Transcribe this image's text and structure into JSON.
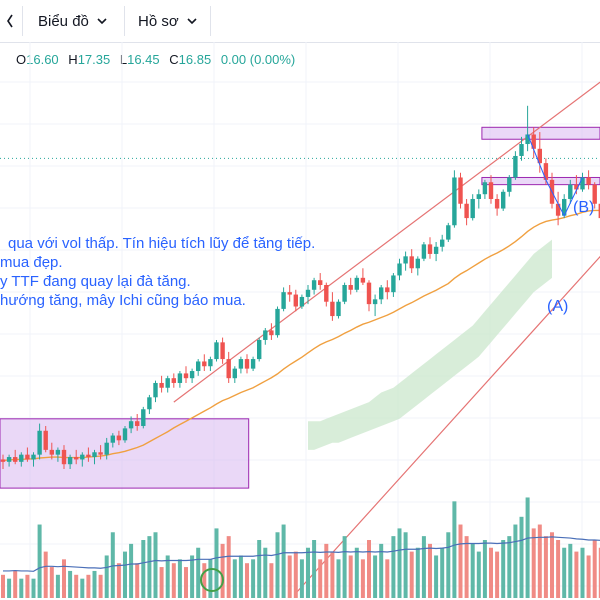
{
  "toolbar": {
    "chart_menu_label": "Biểu đồ",
    "profile_menu_label": "Hồ sơ"
  },
  "ohlc": {
    "o_key": "O",
    "o_val": "16.60",
    "h_key": "H",
    "h_val": "17.35",
    "l_key": "L",
    "l_val": "16.45",
    "c_key": "C",
    "c_val": "16.85",
    "change": "0.00 (0.00%)"
  },
  "notes": [
    "qua với vol thấp. Tín hiệu tích lũy để tăng tiếp.",
    "mua đẹp.",
    "y TTF đang quay lại đà tăng.",
    "hướng tăng, mây Ichi cũng báo mua."
  ],
  "wave_labels": {
    "b": "(B)",
    "a": "(A)"
  },
  "colors": {
    "up": "#26a69a",
    "down": "#ef5350",
    "vol_up": "#5fb8a8",
    "vol_down": "#f08b85",
    "ma": "#f0a040",
    "vol_ma": "#4a6fb8",
    "channel": "#e57373",
    "zone_fill": "#d9b8f0",
    "zone_border": "#9c27b0",
    "cloud": "#c8e6c9",
    "note_text": "#2962ff",
    "marker": "#43a047"
  },
  "chart_data": {
    "type": "candlestick",
    "candles": [
      [
        16.6,
        16.7,
        16.4,
        16.55
      ],
      [
        16.55,
        16.7,
        16.45,
        16.65
      ],
      [
        16.65,
        16.8,
        16.5,
        16.55
      ],
      [
        16.55,
        16.75,
        16.45,
        16.7
      ],
      [
        16.7,
        16.85,
        16.55,
        16.6
      ],
      [
        16.6,
        16.75,
        16.45,
        16.7
      ],
      [
        16.7,
        17.35,
        16.6,
        17.2
      ],
      [
        17.2,
        17.3,
        16.75,
        16.8
      ],
      [
        16.8,
        16.95,
        16.6,
        16.7
      ],
      [
        16.7,
        16.85,
        16.55,
        16.8
      ],
      [
        16.8,
        16.9,
        16.4,
        16.5
      ],
      [
        16.5,
        16.7,
        16.4,
        16.65
      ],
      [
        16.65,
        16.8,
        16.5,
        16.6
      ],
      [
        16.6,
        16.75,
        16.45,
        16.7
      ],
      [
        16.7,
        16.85,
        16.55,
        16.65
      ],
      [
        16.65,
        16.8,
        16.5,
        16.75
      ],
      [
        16.75,
        16.9,
        16.6,
        16.7
      ],
      [
        16.7,
        17.05,
        16.6,
        16.95
      ],
      [
        16.95,
        17.15,
        16.85,
        17.1
      ],
      [
        17.1,
        17.2,
        16.9,
        17.0
      ],
      [
        17.0,
        17.3,
        16.95,
        17.25
      ],
      [
        17.25,
        17.5,
        17.15,
        17.4
      ],
      [
        17.4,
        17.55,
        17.2,
        17.3
      ],
      [
        17.3,
        17.7,
        17.25,
        17.65
      ],
      [
        17.65,
        17.95,
        17.55,
        17.9
      ],
      [
        17.9,
        18.25,
        17.8,
        18.2
      ],
      [
        18.2,
        18.35,
        18.0,
        18.1
      ],
      [
        18.1,
        18.35,
        18.0,
        18.3
      ],
      [
        18.3,
        18.4,
        18.1,
        18.2
      ],
      [
        18.2,
        18.45,
        18.1,
        18.4
      ],
      [
        18.4,
        18.55,
        18.2,
        18.3
      ],
      [
        18.3,
        18.5,
        18.2,
        18.45
      ],
      [
        18.45,
        18.7,
        18.35,
        18.65
      ],
      [
        18.65,
        18.8,
        18.45,
        18.55
      ],
      [
        18.55,
        18.75,
        18.45,
        18.7
      ],
      [
        18.7,
        19.1,
        18.65,
        19.05
      ],
      [
        19.05,
        19.15,
        18.6,
        18.7
      ],
      [
        18.7,
        18.85,
        18.2,
        18.3
      ],
      [
        18.3,
        18.55,
        18.2,
        18.5
      ],
      [
        18.5,
        18.75,
        18.4,
        18.7
      ],
      [
        18.7,
        18.8,
        18.4,
        18.5
      ],
      [
        18.5,
        18.75,
        18.45,
        18.7
      ],
      [
        18.7,
        19.15,
        18.65,
        19.1
      ],
      [
        19.1,
        19.35,
        19.0,
        19.3
      ],
      [
        19.3,
        19.45,
        19.1,
        19.2
      ],
      [
        19.2,
        19.8,
        19.15,
        19.75
      ],
      [
        19.75,
        20.2,
        19.7,
        20.1
      ],
      [
        20.1,
        20.25,
        19.9,
        20.05
      ],
      [
        20.05,
        20.15,
        19.7,
        19.8
      ],
      [
        19.8,
        20.05,
        19.75,
        20.0
      ],
      [
        20.0,
        20.25,
        19.85,
        20.15
      ],
      [
        20.15,
        20.4,
        20.05,
        20.35
      ],
      [
        20.35,
        20.5,
        20.15,
        20.25
      ],
      [
        20.25,
        20.3,
        19.8,
        19.9
      ],
      [
        19.9,
        20.1,
        19.5,
        19.6
      ],
      [
        19.6,
        19.95,
        19.55,
        19.9
      ],
      [
        19.9,
        20.3,
        19.85,
        20.25
      ],
      [
        20.25,
        20.4,
        20.05,
        20.15
      ],
      [
        20.15,
        20.45,
        20.1,
        20.4
      ],
      [
        20.4,
        20.6,
        20.25,
        20.3
      ],
      [
        20.3,
        20.35,
        19.7,
        19.85
      ],
      [
        19.85,
        20.05,
        19.6,
        19.95
      ],
      [
        19.95,
        20.25,
        19.85,
        20.2
      ],
      [
        20.2,
        20.35,
        19.95,
        20.1
      ],
      [
        20.1,
        20.5,
        20.0,
        20.45
      ],
      [
        20.45,
        20.8,
        20.35,
        20.7
      ],
      [
        20.7,
        20.95,
        20.55,
        20.85
      ],
      [
        20.85,
        21.0,
        20.5,
        20.6
      ],
      [
        20.6,
        20.85,
        20.45,
        20.8
      ],
      [
        20.8,
        21.15,
        20.75,
        21.1
      ],
      [
        21.1,
        21.25,
        20.8,
        20.9
      ],
      [
        20.9,
        21.15,
        20.75,
        21.05
      ],
      [
        21.05,
        21.3,
        20.95,
        21.2
      ],
      [
        21.2,
        21.55,
        21.15,
        21.5
      ],
      [
        21.5,
        22.65,
        21.45,
        22.5
      ],
      [
        22.5,
        22.6,
        21.85,
        21.95
      ],
      [
        21.95,
        22.05,
        21.5,
        21.65
      ],
      [
        21.65,
        22.15,
        21.6,
        22.05
      ],
      [
        22.05,
        22.25,
        21.85,
        22.15
      ],
      [
        22.15,
        22.45,
        22.05,
        22.4
      ],
      [
        22.4,
        22.55,
        21.95,
        22.05
      ],
      [
        22.05,
        22.15,
        21.7,
        21.85
      ],
      [
        21.85,
        22.25,
        21.8,
        22.2
      ],
      [
        22.2,
        22.55,
        22.1,
        22.5
      ],
      [
        22.5,
        23.05,
        22.45,
        22.95
      ],
      [
        22.95,
        23.35,
        22.85,
        23.2
      ],
      [
        23.2,
        24.0,
        23.05,
        23.4
      ],
      [
        23.4,
        23.55,
        22.9,
        23.1
      ],
      [
        23.1,
        23.45,
        22.6,
        22.8
      ],
      [
        22.8,
        22.9,
        22.35,
        22.45
      ],
      [
        22.45,
        22.6,
        21.85,
        21.95
      ],
      [
        21.95,
        22.2,
        21.5,
        21.7
      ],
      [
        21.7,
        22.15,
        21.65,
        22.05
      ],
      [
        22.05,
        22.45,
        21.95,
        22.35
      ],
      [
        22.35,
        22.55,
        22.15,
        22.25
      ],
      [
        22.25,
        22.6,
        22.2,
        22.5
      ],
      [
        22.5,
        22.65,
        22.25,
        22.35
      ],
      [
        22.35,
        22.4,
        21.85,
        21.95
      ],
      [
        21.95,
        22.1,
        21.55,
        21.65
      ]
    ],
    "ma": [
      16.58,
      16.59,
      16.6,
      16.6,
      16.61,
      16.61,
      16.63,
      16.64,
      16.65,
      16.65,
      16.64,
      16.64,
      16.64,
      16.64,
      16.65,
      16.66,
      16.67,
      16.69,
      16.72,
      16.74,
      16.77,
      16.81,
      16.85,
      16.9,
      16.97,
      17.04,
      17.11,
      17.18,
      17.26,
      17.33,
      17.4,
      17.47,
      17.54,
      17.61,
      17.68,
      17.76,
      17.83,
      17.88,
      17.94,
      18.0,
      18.05,
      18.1,
      18.17,
      18.24,
      18.31,
      18.39,
      18.49,
      18.58,
      18.66,
      18.74,
      18.83,
      18.92,
      19.0,
      19.06,
      19.11,
      19.17,
      19.24,
      19.3,
      19.37,
      19.43,
      19.47,
      19.52,
      19.57,
      19.62,
      19.68,
      19.75,
      19.82,
      19.88,
      19.95,
      20.02,
      20.08,
      20.14,
      20.21,
      20.28,
      20.39,
      20.48,
      20.55,
      20.63,
      20.71,
      20.79,
      20.86,
      20.92,
      20.99,
      21.07,
      21.16,
      21.26,
      21.37,
      21.46,
      21.53,
      21.58,
      21.61,
      21.63,
      21.66,
      21.7,
      21.73,
      21.77,
      21.8,
      21.81,
      21.81
    ],
    "volume": [
      0.6,
      0.5,
      0.7,
      0.5,
      0.6,
      0.5,
      1.9,
      1.2,
      0.8,
      0.6,
      1.0,
      0.7,
      0.6,
      0.5,
      0.6,
      0.7,
      0.6,
      1.1,
      1.7,
      0.9,
      1.2,
      1.4,
      0.9,
      1.5,
      1.6,
      1.7,
      0.8,
      1.1,
      0.9,
      1.0,
      0.8,
      1.1,
      1.3,
      0.9,
      1.0,
      1.8,
      1.4,
      1.6,
      1.0,
      1.1,
      0.9,
      1.0,
      1.5,
      1.3,
      0.9,
      1.7,
      1.9,
      1.1,
      1.2,
      1.0,
      1.3,
      1.5,
      1.0,
      1.4,
      1.2,
      1.0,
      1.6,
      1.1,
      1.3,
      1.0,
      1.5,
      1.1,
      1.4,
      1.0,
      1.6,
      1.8,
      1.7,
      1.2,
      1.3,
      1.6,
      1.4,
      1.1,
      1.3,
      1.7,
      2.5,
      1.9,
      1.6,
      1.4,
      1.2,
      1.5,
      1.3,
      1.2,
      1.5,
      1.6,
      1.9,
      2.1,
      2.6,
      1.8,
      1.9,
      1.6,
      1.7,
      1.5,
      1.3,
      1.4,
      1.2,
      1.3,
      1.1,
      1.5,
      1.3
    ],
    "vol_ma": [
      0.7,
      0.7,
      0.71,
      0.7,
      0.7,
      0.69,
      0.78,
      0.82,
      0.82,
      0.81,
      0.82,
      0.81,
      0.8,
      0.79,
      0.78,
      0.78,
      0.77,
      0.79,
      0.83,
      0.84,
      0.85,
      0.88,
      0.88,
      0.91,
      0.94,
      0.97,
      0.96,
      0.97,
      0.97,
      0.97,
      0.97,
      0.98,
      1.0,
      1.0,
      1.0,
      1.04,
      1.06,
      1.08,
      1.08,
      1.08,
      1.08,
      1.08,
      1.1,
      1.11,
      1.1,
      1.13,
      1.17,
      1.17,
      1.17,
      1.17,
      1.18,
      1.19,
      1.18,
      1.19,
      1.19,
      1.18,
      1.2,
      1.19,
      1.2,
      1.19,
      1.2,
      1.19,
      1.2,
      1.19,
      1.21,
      1.24,
      1.26,
      1.26,
      1.26,
      1.28,
      1.29,
      1.28,
      1.29,
      1.31,
      1.37,
      1.4,
      1.41,
      1.41,
      1.41,
      1.42,
      1.42,
      1.41,
      1.42,
      1.43,
      1.46,
      1.49,
      1.55,
      1.56,
      1.57,
      1.57,
      1.58,
      1.57,
      1.56,
      1.55,
      1.53,
      1.52,
      1.5,
      1.5,
      1.49
    ],
    "cloud_top": [
      17.4,
      17.4,
      17.4,
      17.45,
      17.5,
      17.55,
      17.6,
      17.65,
      17.7,
      17.75,
      17.8,
      17.9,
      18.0,
      18.05,
      18.1,
      18.2,
      18.3,
      18.4,
      18.5,
      18.6,
      18.7,
      18.8,
      18.9,
      19.0,
      19.1,
      19.2,
      19.3,
      19.4,
      19.55,
      19.7,
      19.85,
      20.0,
      20.15,
      20.3,
      20.45,
      20.6,
      20.75,
      20.9,
      21.0,
      21.1,
      21.2
    ],
    "cloud_bottom": [
      16.8,
      16.8,
      16.85,
      16.9,
      16.95,
      16.95,
      17.0,
      17.05,
      17.1,
      17.15,
      17.2,
      17.25,
      17.3,
      17.35,
      17.4,
      17.45,
      17.55,
      17.65,
      17.75,
      17.85,
      17.95,
      18.05,
      18.15,
      18.25,
      18.35,
      18.45,
      18.55,
      18.65,
      18.75,
      18.9,
      19.05,
      19.2,
      19.35,
      19.5,
      19.65,
      19.8,
      19.95,
      20.1,
      20.2,
      20.3,
      20.4
    ],
    "zones": [
      {
        "name": "accumulation-box",
        "x_from": 0,
        "x_to": 37,
        "y_low": 16.0,
        "y_high": 17.45
      },
      {
        "name": "resistance-zone-upper",
        "x_from": 79,
        "x_to": 99,
        "y_low": 23.3,
        "y_high": 23.55
      },
      {
        "name": "resistance-zone-lower",
        "x_from": 79,
        "x_to": 99,
        "y_low": 22.35,
        "y_high": 22.5
      }
    ],
    "channel_upper": [
      [
        28,
        17.8
      ],
      [
        99,
        24.6
      ]
    ],
    "channel_lower": [
      [
        48,
        13.8
      ],
      [
        99,
        21.0
      ]
    ],
    "price_range": [
      15.5,
      25.0
    ],
    "volume_range": [
      0,
      3.0
    ]
  }
}
